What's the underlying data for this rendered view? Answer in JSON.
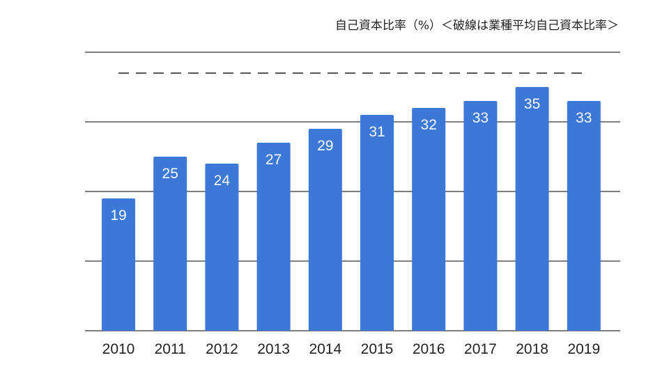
{
  "chart_data": {
    "type": "bar",
    "title": "自己資本比率（%）＜破線は業種平均自己資本比率＞",
    "categories": [
      "2010",
      "2011",
      "2012",
      "2013",
      "2014",
      "2015",
      "2016",
      "2017",
      "2018",
      "2019"
    ],
    "series": [
      {
        "values": [
          19,
          25,
          24,
          27,
          29,
          31,
          32,
          33,
          35,
          33
        ],
        "color": "#3c78d8"
      }
    ],
    "data_labels": [
      "19",
      "25",
      "24",
      "27",
      "29",
      "31",
      "32",
      "33",
      "35",
      "33"
    ],
    "ylim": [
      0,
      40
    ],
    "y_gridlines": [
      0,
      10,
      20,
      30,
      40
    ],
    "y_tick_labels_shown": false,
    "grid": true,
    "legend": "none",
    "reference_line": {
      "style": "dashed",
      "value": 37
    },
    "colors": {
      "bar": "#3c78d8",
      "grid": "#333333",
      "reference_line": "#555555",
      "data_label": "#ffffff"
    }
  }
}
